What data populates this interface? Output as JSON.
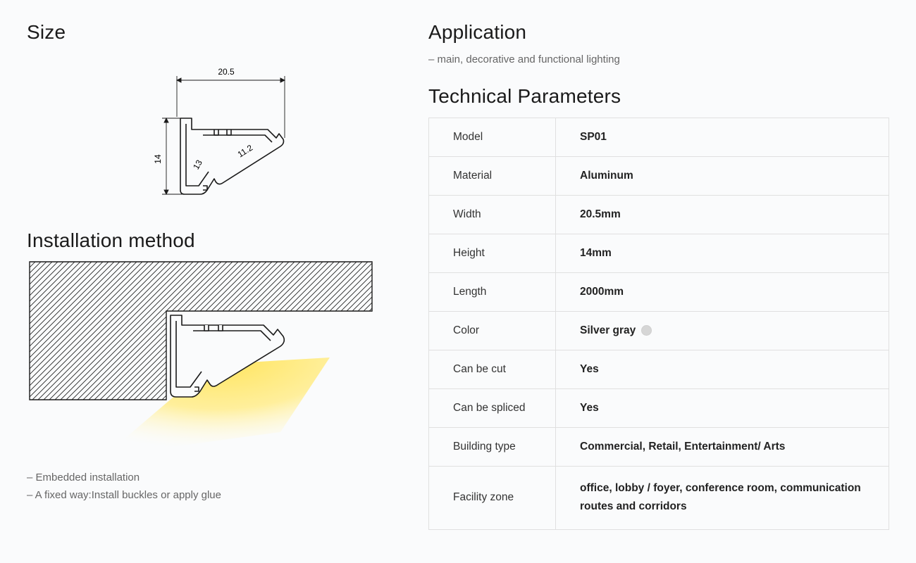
{
  "size": {
    "heading": "Size",
    "dims": {
      "width": "20.5",
      "height": "14",
      "inner1": "13",
      "inner2": "11.2"
    },
    "stroke": "#1a1a1a",
    "stroke_width": 1.6,
    "dim_stroke_width": 0.9,
    "dim_fontsize": 12
  },
  "installation": {
    "heading": "Installation method",
    "notes": [
      "– Embedded installation",
      "– A fixed way:Install buckles or apply glue"
    ],
    "profile_stroke": "#1a1a1a",
    "hatch_stroke": "#1a1a1a",
    "hatch_spacing": 8,
    "light_gradient": {
      "inner": "#fff3a0",
      "outer": "#fffbe0"
    }
  },
  "application": {
    "heading": "Application",
    "note": "– main, decorative and functional lighting"
  },
  "tech": {
    "heading": "Technical Parameters",
    "rows": [
      {
        "label": "Model",
        "value": "SP01"
      },
      {
        "label": "Material",
        "value": "Aluminum"
      },
      {
        "label": "Width",
        "value": "20.5mm"
      },
      {
        "label": "Height",
        "value": "14mm"
      },
      {
        "label": "Length",
        "value": "2000mm"
      },
      {
        "label": "Color",
        "value": "Silver gray",
        "swatch": "#d6d6d6"
      },
      {
        "label": "Can be cut",
        "value": "Yes"
      },
      {
        "label": "Can be spliced",
        "value": "Yes"
      },
      {
        "label": "Building type",
        "value": "Commercial, Retail, Entertainment/ Arts"
      },
      {
        "label": "Facility zone",
        "value": "office, lobby / foyer, conference room, communication routes and corridors",
        "multiline": true
      }
    ],
    "border_color": "#e0e0e0",
    "label_color": "#333",
    "value_weight": 700
  },
  "page": {
    "bg": "#fafbfc",
    "text": "#1a1a1a"
  }
}
